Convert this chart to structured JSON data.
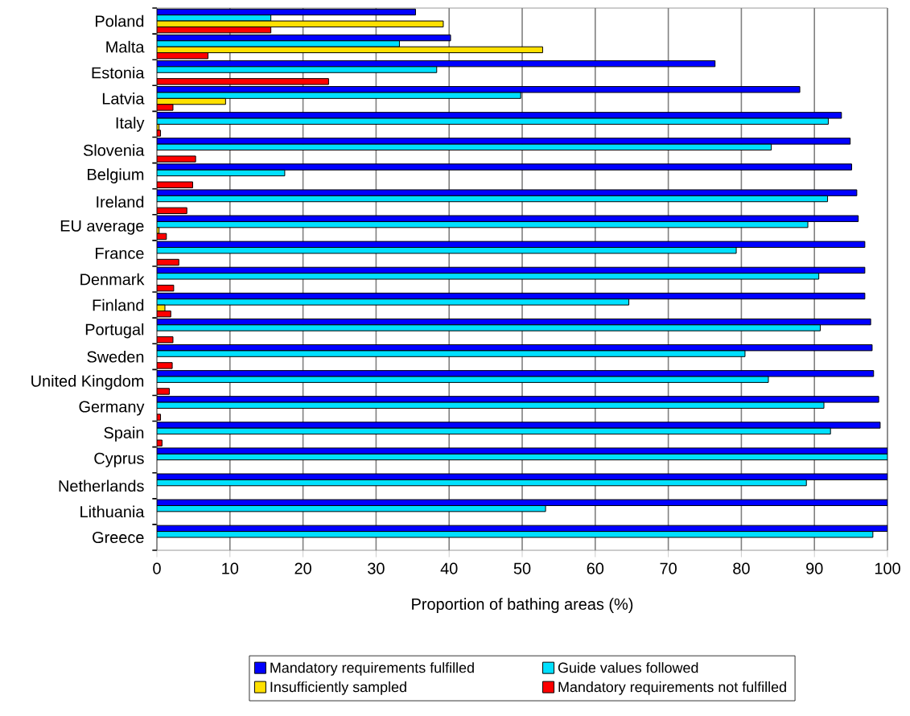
{
  "chart_data": {
    "type": "bar",
    "orientation": "horizontal",
    "xlabel": "Proportion of bathing areas (%)",
    "categories": [
      "Poland",
      "Malta",
      "Estonia",
      "Latvia",
      "Italy",
      "Slovenia",
      "Belgium",
      "Ireland",
      "EU average",
      "France",
      "Denmark",
      "Finland",
      "Portugal",
      "Sweden",
      "United Kingdom",
      "Germany",
      "Spain",
      "Cyprus",
      "Netherlands",
      "Lithuania",
      "Greece"
    ],
    "series": [
      {
        "name": "Mandatory requirements fulfilled",
        "color": "#0000ff",
        "values": [
          35.4,
          40.2,
          76.4,
          88.0,
          93.7,
          94.9,
          95.1,
          95.8,
          96.0,
          96.9,
          96.9,
          96.9,
          97.7,
          97.9,
          98.1,
          98.8,
          99.0,
          100,
          100,
          100,
          100
        ]
      },
      {
        "name": "Guide values followed",
        "color": "#00e0ff",
        "values": [
          15.6,
          33.2,
          38.3,
          49.8,
          91.9,
          84.1,
          17.5,
          91.8,
          89.1,
          79.3,
          90.6,
          64.6,
          90.8,
          80.5,
          83.7,
          91.3,
          92.2,
          100,
          88.9,
          53.2,
          98.0
        ]
      },
      {
        "name": "Insufficiently sampled",
        "color": "#ffe000",
        "values": [
          39.2,
          52.8,
          null,
          9.4,
          0.3,
          null,
          null,
          null,
          0.3,
          null,
          null,
          1.1,
          null,
          null,
          null,
          null,
          null,
          null,
          null,
          null,
          null
        ]
      },
      {
        "name": "Mandatory requirements not fulfilled",
        "color": "#ff0000",
        "values": [
          15.6,
          7.0,
          23.5,
          2.2,
          0.5,
          5.3,
          4.9,
          4.1,
          1.3,
          3.0,
          2.3,
          1.9,
          2.2,
          2.1,
          1.7,
          0.5,
          0.7,
          null,
          null,
          null,
          null
        ]
      }
    ],
    "xlim": [
      0,
      100
    ],
    "xticks": [
      0,
      10,
      20,
      30,
      40,
      50,
      60,
      70,
      80,
      90,
      100
    ],
    "grid": "x",
    "legend": "bottom"
  }
}
